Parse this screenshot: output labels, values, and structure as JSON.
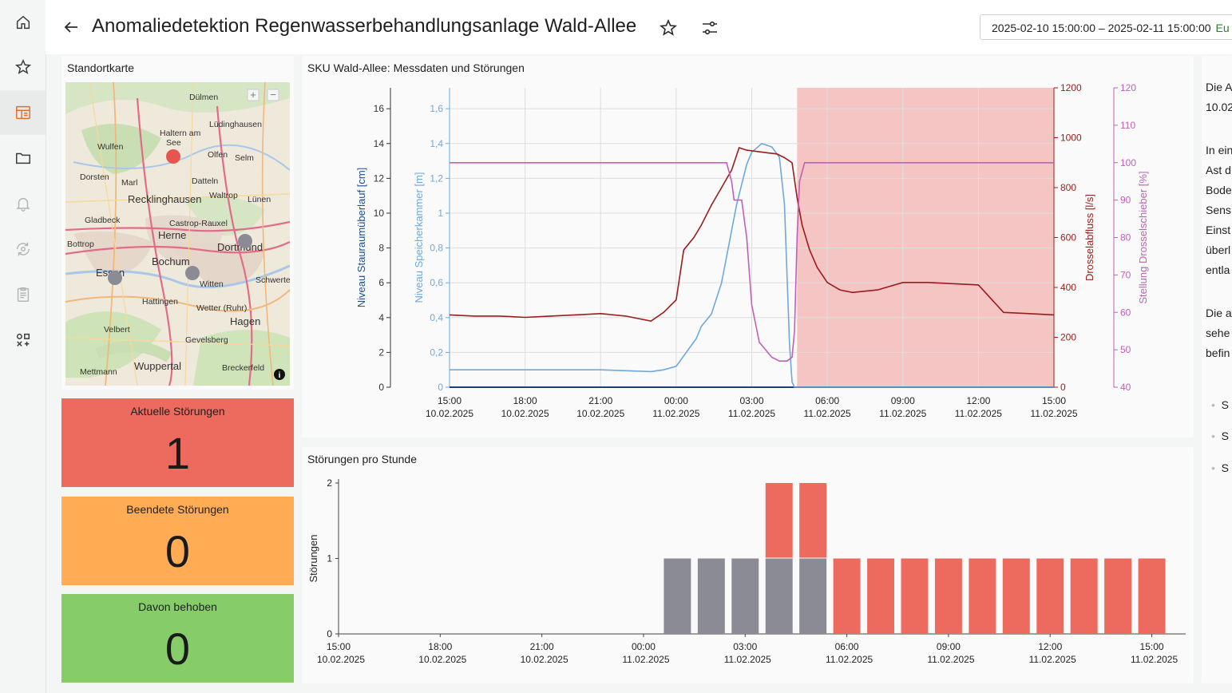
{
  "header": {
    "title": "Anomaliedetektion Regenwasserbehandlungsanlage Wald-Allee",
    "time_range": "2025-02-10 15:00:00 – 2025-02-11 15:00:00",
    "timezone": "Eu"
  },
  "sidebar": {
    "items": [
      {
        "icon": "home-icon"
      },
      {
        "icon": "star-icon"
      },
      {
        "icon": "dashboard-icon",
        "active": true
      },
      {
        "icon": "folder-icon"
      },
      {
        "icon": "bell-icon"
      },
      {
        "icon": "refresh-gear-icon"
      },
      {
        "icon": "clipboard-icon"
      },
      {
        "icon": "tools-icon"
      }
    ]
  },
  "map": {
    "title": "Standortkarte",
    "places": [
      "Dülmen",
      "Haltern am See",
      "Lüdinghausen",
      "Wulfen",
      "Olfen",
      "Selm",
      "Dorsten",
      "Marl",
      "Datteln",
      "Waltrop",
      "Lünen",
      "Recklinghausen",
      "Gladbeck",
      "Castrop-Rauxel",
      "Bottrop",
      "Herne",
      "Dortmund",
      "Bochum",
      "Essen",
      "Witten",
      "Schwerte",
      "Hattingen",
      "Wetter (Ruhr)",
      "Velbert",
      "Hagen",
      "Gevelsberg",
      "Wuppertal",
      "Mettmann",
      "Breckerfeld"
    ],
    "colors": {
      "alarm": "#e8554e",
      "normal": "#8b8b95"
    }
  },
  "stats": [
    {
      "label": "Aktuelle Störungen",
      "value": "1",
      "color": "#ec6a5e"
    },
    {
      "label": "Beendete Störungen",
      "value": "0",
      "color": "#ffac55"
    },
    {
      "label": "Davon behoben",
      "value": "0",
      "color": "#86cd6a"
    }
  ],
  "right_text": {
    "lines": [
      "Die A",
      "10.02",
      "In ein",
      "Ast d",
      "Bode",
      "Sens",
      "Einst",
      "überl",
      "entla",
      "Die a",
      "sehe",
      "befin"
    ],
    "bullets": [
      "S",
      "S",
      "S"
    ]
  },
  "chart_data": [
    {
      "type": "line",
      "title": "SKU Wald-Allee: Messdaten und Störungen",
      "x_ticks": [
        [
          "15:00",
          "10.02.2025"
        ],
        [
          "18:00",
          "10.02.2025"
        ],
        [
          "21:00",
          "10.02.2025"
        ],
        [
          "00:00",
          "11.02.2025"
        ],
        [
          "03:00",
          "11.02.2025"
        ],
        [
          "06:00",
          "11.02.2025"
        ],
        [
          "09:00",
          "11.02.2025"
        ],
        [
          "12:00",
          "11.02.2025"
        ],
        [
          "15:00",
          "11.02.2025"
        ]
      ],
      "x_range_hours": [
        0,
        24
      ],
      "axes": [
        {
          "id": "y1",
          "label": "Niveau Stauraumüberlauf [cm]",
          "ticks": [
            "0",
            "2",
            "4",
            "6",
            "8",
            "10",
            "12",
            "14",
            "16"
          ],
          "range": [
            0,
            17.2
          ],
          "color": "#1f4e8c"
        },
        {
          "id": "y2",
          "label": "Niveau Speicherkammer [m]",
          "ticks": [
            "0",
            "0,2",
            "0,4",
            "0,6",
            "0,8",
            "1",
            "1,2",
            "1,4",
            "1,6"
          ],
          "range": [
            0,
            1.72
          ],
          "color": "#6fa8dc"
        },
        {
          "id": "y3",
          "label": "Drosselabfluss [l/s]",
          "ticks": [
            "0",
            "200",
            "400",
            "600",
            "800",
            "1000",
            "1200"
          ],
          "range": [
            0,
            1200
          ],
          "color": "#9b1c1c"
        },
        {
          "id": "y4",
          "label": "Stellung Drosselschieber [%]",
          "ticks": [
            "40",
            "50",
            "60",
            "70",
            "80",
            "90",
            "100",
            "110",
            "120"
          ],
          "range": [
            40,
            120
          ],
          "color": "#c060b8"
        }
      ],
      "anomaly_band_hours": [
        13.8,
        24
      ],
      "anomaly_color": "#f4c5c3",
      "series": [
        {
          "axis": "y1",
          "color": "#1f3f6e",
          "x": [
            0,
            24
          ],
          "y": [
            0,
            0
          ]
        },
        {
          "axis": "y2",
          "color": "#6fa8dc",
          "x": [
            0,
            2,
            4,
            6,
            8,
            8.5,
            9,
            9.4,
            9.8,
            10,
            10.4,
            10.8,
            11,
            11.4,
            11.8,
            12,
            12.4,
            12.8,
            13.1,
            13.3,
            13.5,
            13.6,
            13.7,
            13.8,
            24
          ],
          "y": [
            0.1,
            0.1,
            0.1,
            0.1,
            0.09,
            0.1,
            0.12,
            0.2,
            0.28,
            0.35,
            0.42,
            0.6,
            0.75,
            1.05,
            1.28,
            1.35,
            1.4,
            1.38,
            1.32,
            1.05,
            0.25,
            0.03,
            0.0,
            0.0,
            0.0
          ]
        },
        {
          "axis": "y3",
          "color": "#9b1c1c",
          "x": [
            0,
            1,
            2,
            3,
            4,
            5,
            6,
            7,
            8,
            8.5,
            9,
            9.3,
            9.7,
            10,
            10.4,
            10.8,
            11.2,
            11.5,
            11.8,
            12.2,
            12.6,
            13,
            13.3,
            13.6,
            13.8,
            14,
            14.3,
            14.6,
            15,
            15.5,
            16,
            17,
            18,
            19,
            20,
            21,
            22,
            23,
            24
          ],
          "y": [
            290,
            285,
            285,
            280,
            285,
            290,
            295,
            285,
            265,
            300,
            350,
            550,
            600,
            650,
            730,
            800,
            870,
            960,
            950,
            945,
            940,
            935,
            920,
            900,
            760,
            650,
            550,
            480,
            420,
            390,
            380,
            390,
            420,
            420,
            415,
            410,
            300,
            295,
            290
          ]
        },
        {
          "axis": "y4",
          "color": "#c060b8",
          "x": [
            0,
            2,
            4,
            6,
            8,
            10,
            11,
            11.2,
            11.3,
            11.6,
            11.8,
            12,
            12.3,
            12.8,
            13.1,
            13.4,
            13.6,
            13.7,
            13.8,
            13.9,
            14.1,
            16,
            18,
            20,
            22,
            24
          ],
          "y": [
            100,
            100,
            100,
            100,
            100,
            100,
            100,
            95,
            90,
            90,
            80,
            62,
            52,
            48,
            47,
            47,
            48,
            55,
            80,
            95,
            100,
            100,
            100,
            100,
            100,
            100
          ]
        }
      ]
    },
    {
      "type": "bar",
      "title": "Störungen pro Stunde",
      "ylabel": "Störungen",
      "y_ticks": [
        "0",
        "1",
        "2"
      ],
      "ylim": [
        0,
        2
      ],
      "x_ticks": [
        [
          "15:00",
          "10.02.2025"
        ],
        [
          "18:00",
          "10.02.2025"
        ],
        [
          "21:00",
          "10.02.2025"
        ],
        [
          "00:00",
          "11.02.2025"
        ],
        [
          "03:00",
          "11.02.2025"
        ],
        [
          "06:00",
          "11.02.2025"
        ],
        [
          "09:00",
          "11.02.2025"
        ],
        [
          "12:00",
          "11.02.2025"
        ],
        [
          "15:00",
          "11.02.2025"
        ]
      ],
      "hours": [
        10,
        11,
        12,
        13,
        14,
        15,
        16,
        17,
        18,
        19,
        20,
        21,
        22,
        23,
        24
      ],
      "series": [
        {
          "color": "#8b8b95",
          "values": [
            1,
            1,
            1,
            1,
            1,
            0,
            0,
            0,
            0,
            0,
            0,
            0,
            0,
            0,
            0
          ]
        },
        {
          "color": "#ec6a5e",
          "values": [
            0,
            0,
            0,
            1,
            1,
            1,
            1,
            1,
            1,
            1,
            1,
            1,
            1,
            1,
            1
          ]
        }
      ]
    }
  ]
}
